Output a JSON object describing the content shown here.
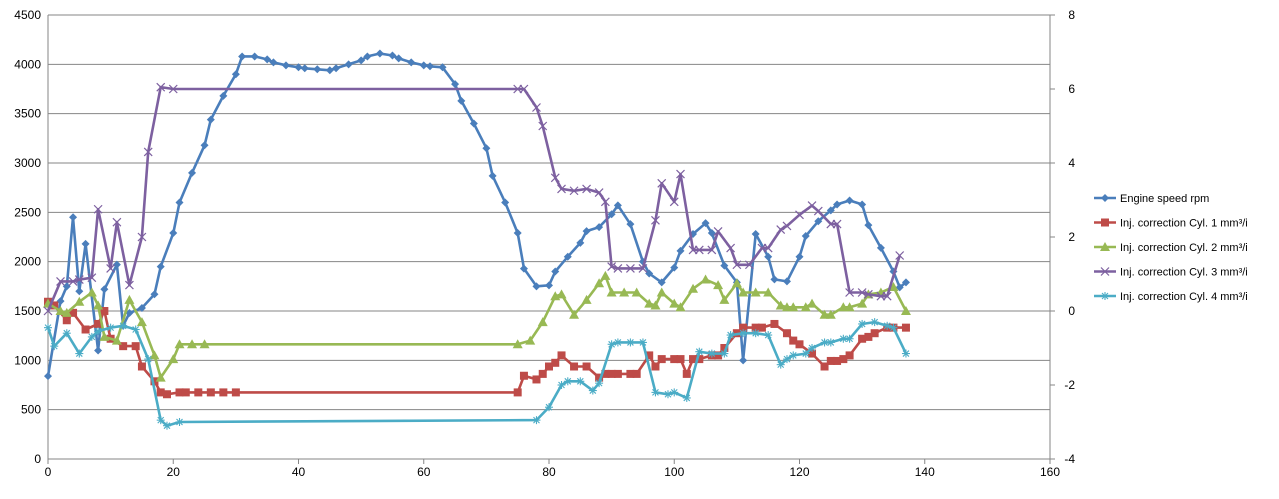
{
  "chart_data": {
    "type": "line",
    "title": "",
    "xlabel": "",
    "ylabel": "",
    "y2label": "",
    "xlim": [
      0,
      160
    ],
    "ylim": [
      0,
      4500
    ],
    "y2lim": [
      -4,
      8
    ],
    "x_ticks": [
      "0",
      "20",
      "40",
      "60",
      "80",
      "100",
      "120",
      "140",
      "160"
    ],
    "y_ticks": [
      "0",
      "500",
      "1000",
      "1500",
      "2000",
      "2500",
      "3000",
      "3500",
      "4000",
      "4500"
    ],
    "y2_ticks": [
      "-4",
      "-2",
      "0",
      "2",
      "4",
      "6",
      "8"
    ],
    "grid": "horizontal",
    "legend_position": "right",
    "series": [
      {
        "name": "Engine speed rpm",
        "axis": "left",
        "color": "#4a7ebb",
        "marker": "diamond",
        "values": [
          840,
          1600,
          1750,
          2450,
          1700,
          2180,
          1100,
          1720,
          1970,
          1350,
          1480,
          1530,
          1670,
          1950,
          2290,
          2600,
          2900,
          3180,
          3440,
          3680,
          3900,
          4080,
          4080,
          4050,
          4020,
          3990,
          3970,
          3960,
          3950,
          3940,
          3960,
          4000,
          4040,
          4080,
          4110,
          4090,
          4060,
          4020,
          3990,
          3980,
          3970,
          3800,
          3630,
          3400,
          3150,
          2870,
          2600,
          2290,
          1930,
          1750,
          1760,
          1900,
          2050,
          2190,
          2310,
          2350,
          2480,
          2570,
          2380,
          2000,
          1880,
          1790,
          1940,
          2110,
          2280,
          2390,
          2290,
          1960,
          1790,
          1000,
          2280,
          2050,
          1820,
          1800,
          2050,
          2260,
          2410,
          2520,
          2580,
          2620,
          2580,
          2370,
          2140,
          1900,
          1740,
          1790
        ],
        "x": [
          0,
          2,
          3,
          4,
          5,
          6,
          8,
          9,
          11,
          12,
          13,
          15,
          17,
          18,
          20,
          21,
          23,
          25,
          26,
          28,
          30,
          31,
          33,
          35,
          36,
          38,
          40,
          41,
          43,
          45,
          46,
          48,
          50,
          51,
          53,
          55,
          56,
          58,
          60,
          61,
          63,
          65,
          66,
          68,
          70,
          71,
          73,
          75,
          76,
          78,
          80,
          81,
          83,
          85,
          86,
          88,
          90,
          91,
          93,
          95,
          96,
          98,
          100,
          101,
          103,
          105,
          106,
          108,
          110,
          111,
          113,
          115,
          116,
          118,
          120,
          121,
          123,
          125,
          126,
          128,
          130,
          131,
          133,
          135,
          136,
          137
        ]
      },
      {
        "name": "Inj. correction Cyl. 1 mm³/i",
        "axis": "right",
        "color": "#be4b48",
        "marker": "square",
        "x": [
          0,
          1,
          3,
          4,
          6,
          8,
          9,
          10,
          12,
          14,
          15,
          17,
          18,
          19,
          21,
          22,
          24,
          26,
          28,
          30,
          75,
          76,
          78,
          79,
          80,
          81,
          82,
          84,
          86,
          88,
          89,
          90,
          91,
          93,
          94,
          96,
          97,
          98,
          100,
          101,
          102,
          103,
          104,
          106,
          107,
          108,
          110,
          111,
          113,
          114,
          116,
          118,
          119,
          120,
          122,
          124,
          125,
          126,
          127,
          128,
          130,
          131,
          132,
          134,
          135,
          137
        ],
        "values": [
          0.25,
          0.15,
          -0.25,
          -0.05,
          -0.5,
          -0.35,
          0.0,
          -0.75,
          -0.95,
          -0.95,
          -1.5,
          -1.9,
          -2.2,
          -2.25,
          -2.2,
          -2.2,
          -2.2,
          -2.2,
          -2.2,
          -2.2,
          -2.2,
          -1.75,
          -1.85,
          -1.7,
          -1.5,
          -1.4,
          -1.2,
          -1.5,
          -1.5,
          -1.8,
          -1.7,
          -1.7,
          -1.7,
          -1.7,
          -1.7,
          -1.2,
          -1.5,
          -1.3,
          -1.3,
          -1.3,
          -1.7,
          -1.3,
          -1.3,
          -1.2,
          -1.2,
          -1.0,
          -0.6,
          -0.45,
          -0.45,
          -0.45,
          -0.35,
          -0.6,
          -0.8,
          -0.9,
          -1.15,
          -1.5,
          -1.35,
          -1.35,
          -1.3,
          -1.2,
          -0.75,
          -0.7,
          -0.6,
          -0.45,
          -0.45,
          -0.45
        ]
      },
      {
        "name": "Inj. correction Cyl. 2 mm³/i",
        "axis": "right",
        "color": "#98b954",
        "marker": "triangle",
        "x": [
          0,
          2,
          3,
          5,
          7,
          8,
          9,
          11,
          13,
          15,
          17,
          18,
          20,
          21,
          23,
          25,
          75,
          77,
          79,
          81,
          82,
          84,
          86,
          88,
          89,
          90,
          92,
          94,
          96,
          97,
          98,
          100,
          101,
          103,
          105,
          107,
          108,
          110,
          111,
          113,
          115,
          117,
          118,
          119,
          121,
          122,
          124,
          125,
          127,
          128,
          130,
          131,
          133,
          135,
          137
        ],
        "values": [
          0.2,
          0.0,
          -0.05,
          0.25,
          0.5,
          0.15,
          -0.7,
          -0.8,
          0.3,
          -0.3,
          -1.2,
          -1.8,
          -1.3,
          -0.9,
          -0.9,
          -0.9,
          -0.9,
          -0.8,
          -0.3,
          0.4,
          0.45,
          -0.1,
          0.3,
          0.75,
          0.95,
          0.5,
          0.5,
          0.5,
          0.2,
          0.15,
          0.5,
          0.2,
          0.1,
          0.6,
          0.85,
          0.7,
          0.3,
          0.75,
          0.5,
          0.5,
          0.5,
          0.15,
          0.1,
          0.1,
          0.1,
          0.2,
          -0.1,
          -0.1,
          0.1,
          0.1,
          0.2,
          0.45,
          0.5,
          0.65,
          0.0
        ]
      },
      {
        "name": "Inj. correction Cyl. 3 mm³/i",
        "axis": "right",
        "color": "#7d60a0",
        "marker": "x",
        "x": [
          0,
          2,
          4,
          5,
          7,
          8,
          10,
          11,
          13,
          15,
          16,
          18,
          20,
          75,
          76,
          78,
          79,
          81,
          82,
          84,
          86,
          88,
          89,
          90,
          91,
          93,
          95,
          97,
          98,
          100,
          101,
          103,
          104,
          106,
          107,
          109,
          110,
          112,
          114,
          115,
          117,
          118,
          120,
          122,
          123,
          125,
          126,
          128,
          130,
          131,
          133,
          134,
          136
        ],
        "values": [
          0.0,
          0.8,
          0.8,
          0.85,
          0.9,
          2.75,
          1.15,
          2.4,
          0.7,
          2.0,
          4.3,
          6.05,
          6.0,
          6.0,
          6.0,
          5.5,
          5.0,
          3.6,
          3.3,
          3.25,
          3.3,
          3.2,
          2.95,
          1.2,
          1.15,
          1.15,
          1.15,
          2.45,
          3.45,
          2.95,
          3.7,
          1.65,
          1.65,
          1.65,
          2.15,
          1.7,
          1.25,
          1.25,
          1.7,
          1.7,
          2.2,
          2.3,
          2.6,
          2.85,
          2.7,
          2.35,
          2.35,
          0.5,
          0.5,
          0.45,
          0.4,
          0.4,
          1.5
        ]
      },
      {
        "name": "Inj. correction Cyl. 4 mm³/i",
        "axis": "right",
        "color": "#4bacc6",
        "marker": "star",
        "x": [
          0,
          1,
          3,
          5,
          7,
          8,
          10,
          12,
          14,
          16,
          18,
          19,
          21,
          78,
          80,
          82,
          83,
          85,
          87,
          88,
          90,
          91,
          93,
          95,
          97,
          99,
          100,
          102,
          104,
          106,
          108,
          109,
          111,
          113,
          115,
          117,
          118,
          119,
          121,
          122,
          124,
          125,
          127,
          128,
          130,
          132,
          134,
          135,
          137
        ],
        "values": [
          -0.45,
          -0.95,
          -0.6,
          -1.15,
          -0.7,
          -0.55,
          -0.45,
          -0.4,
          -0.5,
          -1.3,
          -2.95,
          -3.1,
          -3.0,
          -2.95,
          -2.6,
          -2.0,
          -1.9,
          -1.9,
          -2.15,
          -1.95,
          -0.9,
          -0.85,
          -0.85,
          -0.85,
          -2.2,
          -2.25,
          -2.2,
          -2.35,
          -1.1,
          -1.15,
          -1.15,
          -0.65,
          -0.6,
          -0.6,
          -0.65,
          -1.45,
          -1.3,
          -1.2,
          -1.15,
          -1.0,
          -0.85,
          -0.85,
          -0.75,
          -0.75,
          -0.35,
          -0.3,
          -0.4,
          -0.45,
          -1.15
        ]
      }
    ]
  }
}
